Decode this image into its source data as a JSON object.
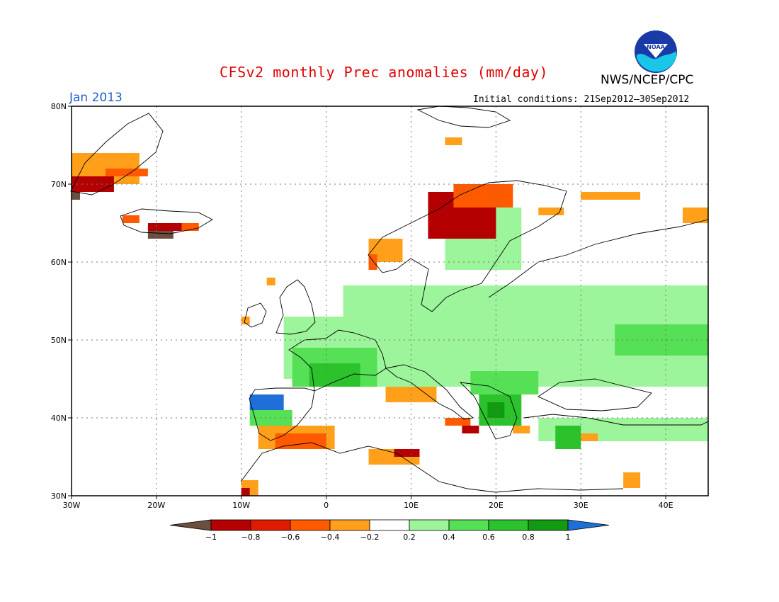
{
  "title": "CFSv2 monthly Prec anomalies (mm/day)",
  "agency": "NWS/NCEP/CPC",
  "month": "Jan 2013",
  "initial_conditions": "Initial conditions: 21Sep2012–30Sep2012",
  "logo_text": "NOAA",
  "map": {
    "lon_range": [
      -30,
      45
    ],
    "lat_range": [
      30,
      80
    ],
    "lat_ticks": [
      {
        "value": 80,
        "label": "80N"
      },
      {
        "value": 70,
        "label": "70N"
      },
      {
        "value": 60,
        "label": "60N"
      },
      {
        "value": 50,
        "label": "50N"
      },
      {
        "value": 40,
        "label": "40N"
      },
      {
        "value": 30,
        "label": "30N"
      }
    ],
    "lon_ticks": [
      {
        "value": -30,
        "label": "30W"
      },
      {
        "value": -20,
        "label": "20W"
      },
      {
        "value": -10,
        "label": "10W"
      },
      {
        "value": 0,
        "label": "0"
      },
      {
        "value": 10,
        "label": "10E"
      },
      {
        "value": 20,
        "label": "20E"
      },
      {
        "value": 30,
        "label": "30E"
      },
      {
        "value": 40,
        "label": "40E"
      }
    ],
    "grid": true
  },
  "colorbar": {
    "labels": [
      "-1",
      "-0.8",
      "-0.6",
      "-0.4",
      "-0.2",
      "0.2",
      "0.4",
      "0.6",
      "0.8",
      "1"
    ],
    "colors": [
      "#6b4e3e",
      "#b40000",
      "#e11b00",
      "#ff5a00",
      "#ff9f1a",
      "#ffffff",
      "#9df59b",
      "#55e055",
      "#2cc22c",
      "#129a12",
      "#1f6fd8"
    ]
  },
  "anomaly_regions": [
    {
      "color": "#9df59b",
      "lon": [
        2,
        45
      ],
      "lat": [
        44,
        57
      ]
    },
    {
      "color": "#9df59b",
      "lon": [
        -5,
        15
      ],
      "lat": [
        45,
        53
      ]
    },
    {
      "color": "#9df59b",
      "lon": [
        14,
        23
      ],
      "lat": [
        59,
        67
      ]
    },
    {
      "color": "#9df59b",
      "lon": [
        25,
        45
      ],
      "lat": [
        37,
        40
      ]
    },
    {
      "color": "#55e055",
      "lon": [
        -4,
        6
      ],
      "lat": [
        44,
        49
      ]
    },
    {
      "color": "#55e055",
      "lon": [
        34,
        45
      ],
      "lat": [
        48,
        52
      ]
    },
    {
      "color": "#55e055",
      "lon": [
        17,
        25
      ],
      "lat": [
        43,
        46
      ]
    },
    {
      "color": "#2cc22c",
      "lon": [
        -2,
        4
      ],
      "lat": [
        44,
        47
      ]
    },
    {
      "color": "#2cc22c",
      "lon": [
        18,
        23
      ],
      "lat": [
        39,
        43
      ]
    },
    {
      "color": "#129a12",
      "lon": [
        19,
        21
      ],
      "lat": [
        40,
        42
      ]
    },
    {
      "color": "#2cc22c",
      "lon": [
        27,
        30
      ],
      "lat": [
        36,
        39
      ]
    },
    {
      "color": "#1f6fd8",
      "lon": [
        -9,
        -5
      ],
      "lat": [
        41,
        43
      ]
    },
    {
      "color": "#55e055",
      "lon": [
        -9,
        -4
      ],
      "lat": [
        39,
        41
      ]
    },
    {
      "color": "#ff9f1a",
      "lon": [
        -8,
        1
      ],
      "lat": [
        36,
        39
      ]
    },
    {
      "color": "#ff5a00",
      "lon": [
        -6,
        0
      ],
      "lat": [
        36,
        38
      ]
    },
    {
      "color": "#ff9f1a",
      "lon": [
        -10,
        -8
      ],
      "lat": [
        30,
        32
      ]
    },
    {
      "color": "#b40000",
      "lon": [
        -10,
        -9
      ],
      "lat": [
        30,
        31
      ]
    },
    {
      "color": "#ff9f1a",
      "lon": [
        5,
        11
      ],
      "lat": [
        34,
        36
      ]
    },
    {
      "color": "#b40000",
      "lon": [
        8,
        11
      ],
      "lat": [
        35,
        36
      ]
    },
    {
      "color": "#ff9f1a",
      "lon": [
        7,
        13
      ],
      "lat": [
        42,
        44
      ]
    },
    {
      "color": "#ff5a00",
      "lon": [
        14,
        17
      ],
      "lat": [
        39,
        40
      ]
    },
    {
      "color": "#b40000",
      "lon": [
        16,
        18
      ],
      "lat": [
        38,
        39
      ]
    },
    {
      "color": "#ff9f1a",
      "lon": [
        22,
        24
      ],
      "lat": [
        38,
        39
      ]
    },
    {
      "color": "#ff9f1a",
      "lon": [
        30,
        32
      ],
      "lat": [
        37,
        38
      ]
    },
    {
      "color": "#ff9f1a",
      "lon": [
        35,
        37
      ],
      "lat": [
        31,
        33
      ]
    },
    {
      "color": "#b40000",
      "lon": [
        12,
        20
      ],
      "lat": [
        63,
        69
      ]
    },
    {
      "color": "#ff5a00",
      "lon": [
        15,
        22
      ],
      "lat": [
        67,
        70
      ]
    },
    {
      "color": "#ff9f1a",
      "lon": [
        5,
        9
      ],
      "lat": [
        60,
        63
      ]
    },
    {
      "color": "#ff5a00",
      "lon": [
        5,
        6
      ],
      "lat": [
        59,
        61
      ]
    },
    {
      "color": "#ff9f1a",
      "lon": [
        25,
        28
      ],
      "lat": [
        66,
        67
      ]
    },
    {
      "color": "#ff9f1a",
      "lon": [
        30,
        37
      ],
      "lat": [
        68,
        69
      ]
    },
    {
      "color": "#ff9f1a",
      "lon": [
        42,
        45
      ],
      "lat": [
        65,
        67
      ]
    },
    {
      "color": "#ff9f1a",
      "lon": [
        -30,
        -22
      ],
      "lat": [
        70,
        74
      ]
    },
    {
      "color": "#b40000",
      "lon": [
        -30,
        -25
      ],
      "lat": [
        69,
        71
      ]
    },
    {
      "color": "#ff5a00",
      "lon": [
        -26,
        -21
      ],
      "lat": [
        71,
        72
      ]
    },
    {
      "color": "#6b4e3e",
      "lon": [
        -30,
        -29
      ],
      "lat": [
        68,
        69
      ]
    },
    {
      "color": "#b40000",
      "lon": [
        -21,
        -17
      ],
      "lat": [
        64,
        65
      ]
    },
    {
      "color": "#ff5a00",
      "lon": [
        -17,
        -15
      ],
      "lat": [
        64,
        65
      ]
    },
    {
      "color": "#6b4e3e",
      "lon": [
        -21,
        -18
      ],
      "lat": [
        63,
        64
      ]
    },
    {
      "color": "#ff5a00",
      "lon": [
        -24,
        -22
      ],
      "lat": [
        65,
        66
      ]
    },
    {
      "color": "#ff9f1a",
      "lon": [
        -7,
        -6
      ],
      "lat": [
        57,
        58
      ]
    },
    {
      "color": "#ff9f1a",
      "lon": [
        -10,
        -9
      ],
      "lat": [
        52,
        53
      ]
    },
    {
      "color": "#ff9f1a",
      "lon": [
        14,
        16
      ],
      "lat": [
        75,
        76
      ]
    }
  ]
}
